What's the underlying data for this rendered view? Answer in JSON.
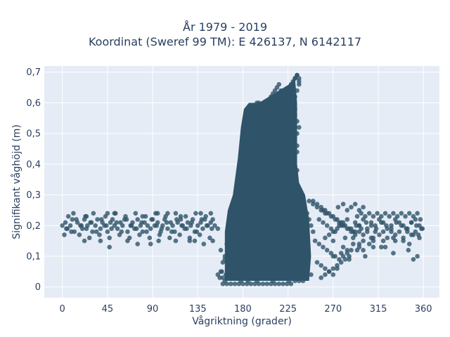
{
  "chart_data": {
    "type": "scatter",
    "title_lines": [
      "År 1979 - 2019",
      "Koordinat (Sweref 99 TM): E 426137, N 6142117"
    ],
    "xlabel": "Vågriktning (grader)",
    "ylabel": "Signifikant våghöjd (m)",
    "xlim": [
      -18,
      376
    ],
    "ylim": [
      -0.035,
      0.72
    ],
    "xticks": [
      0,
      45,
      90,
      135,
      180,
      225,
      270,
      315,
      360
    ],
    "xtick_labels": [
      "0",
      "45",
      "90",
      "135",
      "180",
      "225",
      "270",
      "315",
      "360"
    ],
    "yticks": [
      0,
      0.1,
      0.2,
      0.3,
      0.4,
      0.5,
      0.6,
      0.7
    ],
    "ytick_labels": [
      "0",
      "0,1",
      "0,2",
      "0,3",
      "0,4",
      "0,5",
      "0,6",
      "0,7"
    ],
    "grid": true,
    "legend": "none",
    "colors": {
      "marker": "#2f5469",
      "plot_bg": "#e5ecf6",
      "grid": "#ffffff",
      "text": "#2a3f5f"
    },
    "series": [
      {
        "x": [
          0,
          3,
          5,
          8,
          10,
          12,
          15,
          18,
          20,
          22,
          25,
          28,
          30,
          33,
          35,
          38,
          40,
          42,
          45,
          48,
          50,
          52,
          55,
          58,
          60,
          62,
          65,
          68,
          70,
          72,
          75,
          78,
          80,
          82,
          85,
          88,
          90,
          92,
          95,
          98,
          100,
          102,
          105,
          108,
          110,
          112,
          115,
          118,
          120,
          122,
          125,
          128,
          130,
          132,
          135,
          138,
          140,
          142,
          145,
          148,
          150,
          152,
          155,
          2,
          6,
          11,
          17,
          23,
          27,
          31,
          37,
          43,
          47,
          53,
          57,
          63,
          67,
          73,
          77,
          83,
          87,
          93,
          97,
          103,
          107,
          113,
          117,
          123,
          127,
          133,
          137,
          143,
          147,
          4,
          9,
          14,
          19,
          24,
          29,
          34,
          39,
          44,
          49,
          54,
          59,
          64,
          69,
          74,
          79,
          84,
          89,
          94,
          99,
          104,
          109,
          114,
          119,
          124,
          129,
          134,
          139,
          144,
          149,
          22,
          38,
          47,
          65,
          75,
          88,
          96,
          113,
          127,
          132,
          141,
          150,
          24,
          45,
          52,
          80,
          95,
          105,
          118,
          138,
          148,
          157,
          159,
          160,
          162,
          164,
          165,
          166,
          168,
          170,
          172,
          174,
          175,
          176,
          178,
          180,
          182,
          184,
          186,
          188,
          190,
          192,
          194,
          196,
          198,
          200,
          202,
          204,
          206,
          208,
          210,
          212,
          214,
          216,
          218,
          220,
          222,
          224,
          226,
          228,
          230,
          232,
          234,
          236,
          238,
          240,
          242,
          244,
          246,
          248,
          250,
          160,
          164,
          168,
          172,
          176,
          180,
          184,
          188,
          192,
          196,
          200,
          204,
          208,
          212,
          216,
          220,
          224,
          228,
          232,
          236,
          240,
          244,
          248,
          162,
          170,
          178,
          186,
          194,
          202,
          210,
          218,
          226,
          234,
          242,
          166,
          170,
          172,
          175,
          178,
          180,
          182,
          185,
          188,
          190,
          192,
          195,
          198,
          200,
          205,
          210,
          215,
          220,
          225,
          228,
          230,
          232,
          234,
          236,
          168,
          172,
          175,
          178,
          182,
          185,
          190,
          195,
          200,
          205,
          210,
          215,
          220,
          225,
          228,
          230,
          232,
          234,
          176,
          180,
          185,
          190,
          195,
          200,
          205,
          210,
          215,
          220,
          225,
          228,
          230,
          232,
          234,
          181,
          185,
          190,
          195,
          200,
          205,
          210,
          215,
          220,
          225,
          228,
          230,
          232,
          234,
          185,
          190,
          195,
          200,
          205,
          210,
          215,
          220,
          225,
          228,
          230,
          232,
          234,
          228,
          230,
          232,
          234,
          236,
          230,
          232,
          234,
          236,
          232,
          234,
          236,
          155,
          158,
          160,
          163,
          165,
          168,
          170,
          173,
          176,
          180,
          183,
          158,
          162,
          167,
          170,
          173,
          177,
          180,
          185,
          190,
          195,
          200,
          210,
          220,
          230,
          240,
          250,
          254,
          258,
          262,
          266,
          270,
          274,
          278,
          282,
          286,
          290,
          252,
          256,
          260,
          264,
          268,
          272,
          276,
          280,
          284,
          288,
          254,
          258,
          262,
          266,
          270,
          274,
          278,
          282,
          286,
          256,
          260,
          264,
          268,
          272,
          276,
          280,
          284,
          288,
          292,
          296,
          260,
          264,
          268,
          272,
          276,
          280,
          284,
          288,
          292,
          258,
          262,
          266,
          270,
          274,
          262,
          266,
          270,
          274,
          278,
          246,
          250,
          254,
          258,
          262,
          292,
          296,
          300,
          304,
          308,
          312,
          316,
          320,
          324,
          328,
          332,
          336,
          340,
          344,
          348,
          352,
          356,
          358,
          294,
          298,
          302,
          306,
          310,
          314,
          318,
          322,
          326,
          330,
          334,
          338,
          342,
          346,
          350,
          354,
          357,
          296,
          300,
          304,
          308,
          312,
          316,
          320,
          324,
          328,
          332,
          336,
          340,
          344,
          348,
          352,
          356,
          359,
          293,
          298,
          303,
          308,
          313,
          318,
          323,
          328,
          333,
          338,
          343,
          348,
          353,
          290,
          300,
          310,
          320,
          330,
          340,
          350,
          355,
          280,
          284,
          290,
          296,
          300,
          306,
          310,
          275,
          280,
          284,
          288,
          292,
          296,
          300,
          270,
          278,
          286,
          294,
          302,
          318,
          330,
          345,
          354,
          270,
          282,
          296,
          310,
          322,
          332,
          346,
          350
        ],
        "y": [
          0.2,
          0.21,
          0.19,
          0.2,
          0.22,
          0.18,
          0.21,
          0.2,
          0.19,
          0.22,
          0.2,
          0.21,
          0.18,
          0.2,
          0.22,
          0.19,
          0.21,
          0.2,
          0.18,
          0.21,
          0.22,
          0.2,
          0.19,
          0.21,
          0.2,
          0.22,
          0.18,
          0.2,
          0.21,
          0.19,
          0.22,
          0.2,
          0.18,
          0.21,
          0.2,
          0.19,
          0.22,
          0.2,
          0.21,
          0.18,
          0.2,
          0.22,
          0.19,
          0.21,
          0.2,
          0.18,
          0.21,
          0.22,
          0.2,
          0.19,
          0.21,
          0.2,
          0.22,
          0.18,
          0.2,
          0.21,
          0.19,
          0.22,
          0.2,
          0.21,
          0.22,
          0.2,
          0.19,
          0.17,
          0.23,
          0.24,
          0.17,
          0.23,
          0.16,
          0.24,
          0.17,
          0.23,
          0.16,
          0.24,
          0.17,
          0.23,
          0.16,
          0.24,
          0.17,
          0.23,
          0.16,
          0.24,
          0.17,
          0.23,
          0.16,
          0.24,
          0.17,
          0.23,
          0.16,
          0.24,
          0.17,
          0.23,
          0.16,
          0.19,
          0.18,
          0.22,
          0.2,
          0.19,
          0.21,
          0.18,
          0.22,
          0.2,
          0.19,
          0.21,
          0.18,
          0.22,
          0.2,
          0.19,
          0.21,
          0.18,
          0.22,
          0.2,
          0.19,
          0.21,
          0.18,
          0.22,
          0.2,
          0.19,
          0.21,
          0.18,
          0.22,
          0.2,
          0.19,
          0.15,
          0.15,
          0.13,
          0.15,
          0.14,
          0.14,
          0.15,
          0.15,
          0.15,
          0.15,
          0.14,
          0.15,
          0.23,
          0.24,
          0.24,
          0.23,
          0.24,
          0.24,
          0.23,
          0.24,
          0.24,
          0.03,
          0.05,
          0.08,
          0.1,
          0.14,
          0.17,
          0.2,
          0.24,
          0.27,
          0.29,
          0.31,
          0.33,
          0.35,
          0.38,
          0.42,
          0.46,
          0.5,
          0.53,
          0.56,
          0.58,
          0.59,
          0.6,
          0.6,
          0.59,
          0.58,
          0.59,
          0.6,
          0.61,
          0.62,
          0.63,
          0.64,
          0.65,
          0.66,
          0.64,
          0.55,
          0.45,
          0.38,
          0.35,
          0.34,
          0.33,
          0.3,
          0.29,
          0.28,
          0.27,
          0.26,
          0.25,
          0.24,
          0.22,
          0.2,
          0.18,
          0.01,
          0.01,
          0.01,
          0.01,
          0.01,
          0.01,
          0.01,
          0.01,
          0.01,
          0.01,
          0.01,
          0.01,
          0.01,
          0.01,
          0.01,
          0.01,
          0.01,
          0.01,
          0.02,
          0.02,
          0.03,
          0.03,
          0.04,
          0.02,
          0.03,
          0.02,
          0.03,
          0.02,
          0.03,
          0.02,
          0.03,
          0.02,
          0.03,
          0.04,
          0.1,
          0.15,
          0.2,
          0.28,
          0.33,
          0.38,
          0.45,
          0.52,
          0.56,
          0.58,
          0.59,
          0.58,
          0.57,
          0.56,
          0.57,
          0.58,
          0.6,
          0.62,
          0.63,
          0.61,
          0.58,
          0.56,
          0.54,
          0.52,
          0.06,
          0.08,
          0.12,
          0.18,
          0.24,
          0.3,
          0.36,
          0.42,
          0.48,
          0.5,
          0.52,
          0.53,
          0.54,
          0.55,
          0.56,
          0.57,
          0.58,
          0.5,
          0.05,
          0.1,
          0.15,
          0.2,
          0.25,
          0.3,
          0.35,
          0.4,
          0.45,
          0.48,
          0.5,
          0.52,
          0.54,
          0.52,
          0.46,
          0.03,
          0.06,
          0.09,
          0.12,
          0.18,
          0.24,
          0.3,
          0.36,
          0.4,
          0.44,
          0.46,
          0.48,
          0.5,
          0.44,
          0.02,
          0.03,
          0.05,
          0.07,
          0.1,
          0.13,
          0.16,
          0.2,
          0.24,
          0.28,
          0.32,
          0.36,
          0.38,
          0.66,
          0.67,
          0.68,
          0.69,
          0.67,
          0.6,
          0.62,
          0.64,
          0.68,
          0.68,
          0.69,
          0.66,
          0.04,
          0.05,
          0.03,
          0.04,
          0.05,
          0.04,
          0.06,
          0.05,
          0.06,
          0.05,
          0.04,
          0.12,
          0.09,
          0.11,
          0.08,
          0.1,
          0.07,
          0.09,
          0.06,
          0.08,
          0.05,
          0.04,
          0.03,
          0.03,
          0.03,
          0.02,
          0.28,
          0.27,
          0.26,
          0.25,
          0.24,
          0.23,
          0.22,
          0.21,
          0.2,
          0.19,
          0.18,
          0.15,
          0.14,
          0.13,
          0.12,
          0.11,
          0.1,
          0.09,
          0.1,
          0.11,
          0.12,
          0.08,
          0.07,
          0.06,
          0.05,
          0.06,
          0.07,
          0.08,
          0.09,
          0.1,
          0.22,
          0.21,
          0.2,
          0.19,
          0.18,
          0.2,
          0.21,
          0.22,
          0.19,
          0.18,
          0.2,
          0.25,
          0.24,
          0.23,
          0.22,
          0.21,
          0.2,
          0.19,
          0.18,
          0.17,
          0.03,
          0.04,
          0.05,
          0.04,
          0.06,
          0.16,
          0.17,
          0.18,
          0.19,
          0.2,
          0.28,
          0.27,
          0.26,
          0.25,
          0.24,
          0.21,
          0.2,
          0.22,
          0.19,
          0.21,
          0.2,
          0.22,
          0.21,
          0.19,
          0.2,
          0.22,
          0.21,
          0.2,
          0.19,
          0.21,
          0.22,
          0.2,
          0.19,
          0.23,
          0.24,
          0.23,
          0.24,
          0.23,
          0.24,
          0.23,
          0.24,
          0.23,
          0.24,
          0.23,
          0.24,
          0.23,
          0.24,
          0.23,
          0.24,
          0.22,
          0.18,
          0.17,
          0.18,
          0.16,
          0.18,
          0.17,
          0.18,
          0.16,
          0.18,
          0.17,
          0.18,
          0.16,
          0.18,
          0.17,
          0.18,
          0.16,
          0.19,
          0.2,
          0.19,
          0.21,
          0.2,
          0.19,
          0.21,
          0.2,
          0.19,
          0.21,
          0.2,
          0.19,
          0.21,
          0.2,
          0.16,
          0.15,
          0.16,
          0.15,
          0.16,
          0.15,
          0.17,
          0.17,
          0.13,
          0.12,
          0.14,
          0.13,
          0.12,
          0.14,
          0.13,
          0.26,
          0.27,
          0.25,
          0.26,
          0.27,
          0.25,
          0.26,
          0.1,
          0.11,
          0.09,
          0.12,
          0.1,
          0.13,
          0.11,
          0.12,
          0.1,
          0.15,
          0.16,
          0.14,
          0.15,
          0.13,
          0.15,
          0.14,
          0.09
        ]
      }
    ]
  }
}
